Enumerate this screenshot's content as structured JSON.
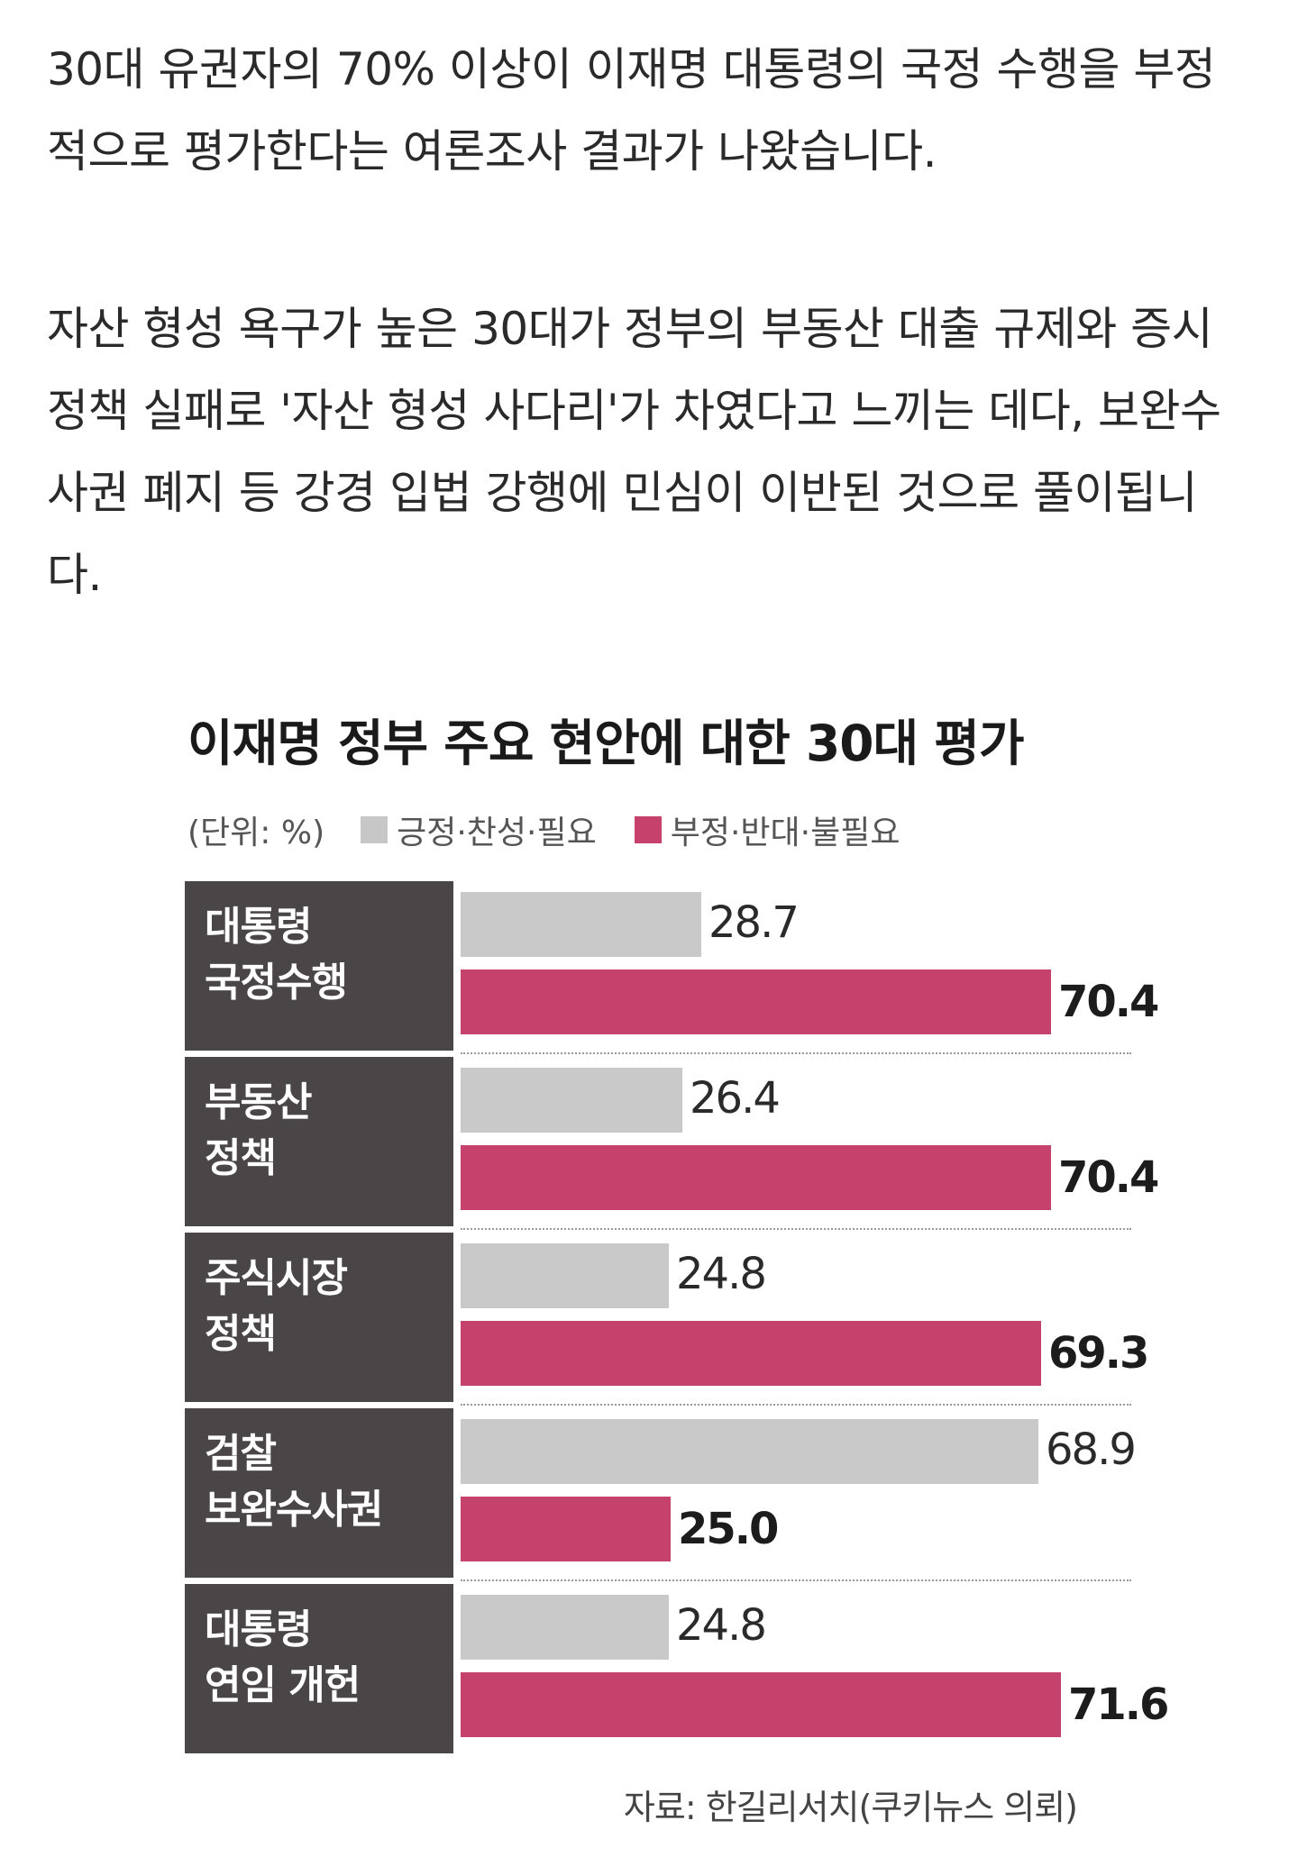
{
  "article": {
    "paragraph1": "30대 유권자의 70% 이상이 이재명 대통령의 국정 수행을 부정적으로 평가한다는 여론조사 결과가 나왔습니다.",
    "paragraph2": "자산 형성 욕구가 높은 30대가 정부의 부동산 대출 규제와 증시 정책 실패로 '자산 형성 사다리'가 차였다고 느끼는 데다, 보완수사권 폐지 등 강경 입법 강행에 민심이 이반된 것으로 풀이됩니다."
  },
  "chart_data": {
    "type": "bar",
    "title": "이재명 정부 주요 현안에 대한 30대 평가",
    "unit": "(단위: %)",
    "legend_position": "top-left",
    "categories": [
      [
        "대통령",
        "국정수행"
      ],
      [
        "부동산",
        "정책"
      ],
      [
        "주식시장",
        "정책"
      ],
      [
        "검찰",
        "보완수사권"
      ],
      [
        "대통령",
        "연임 개헌"
      ]
    ],
    "series": [
      {
        "name": "긍정·찬성·필요",
        "values": [
          "28.7",
          "26.4",
          "24.8",
          "68.9",
          "24.8"
        ],
        "color": "#c9c9c9"
      },
      {
        "name": "부정·반대·불필요",
        "values": [
          "70.4",
          "70.4",
          "69.3",
          "25.0",
          "71.6"
        ],
        "color": "#c5426d"
      }
    ],
    "xlim": [
      0,
      80
    ],
    "source": "자료: 한길리서치(쿠키뉴스 의뢰)"
  }
}
